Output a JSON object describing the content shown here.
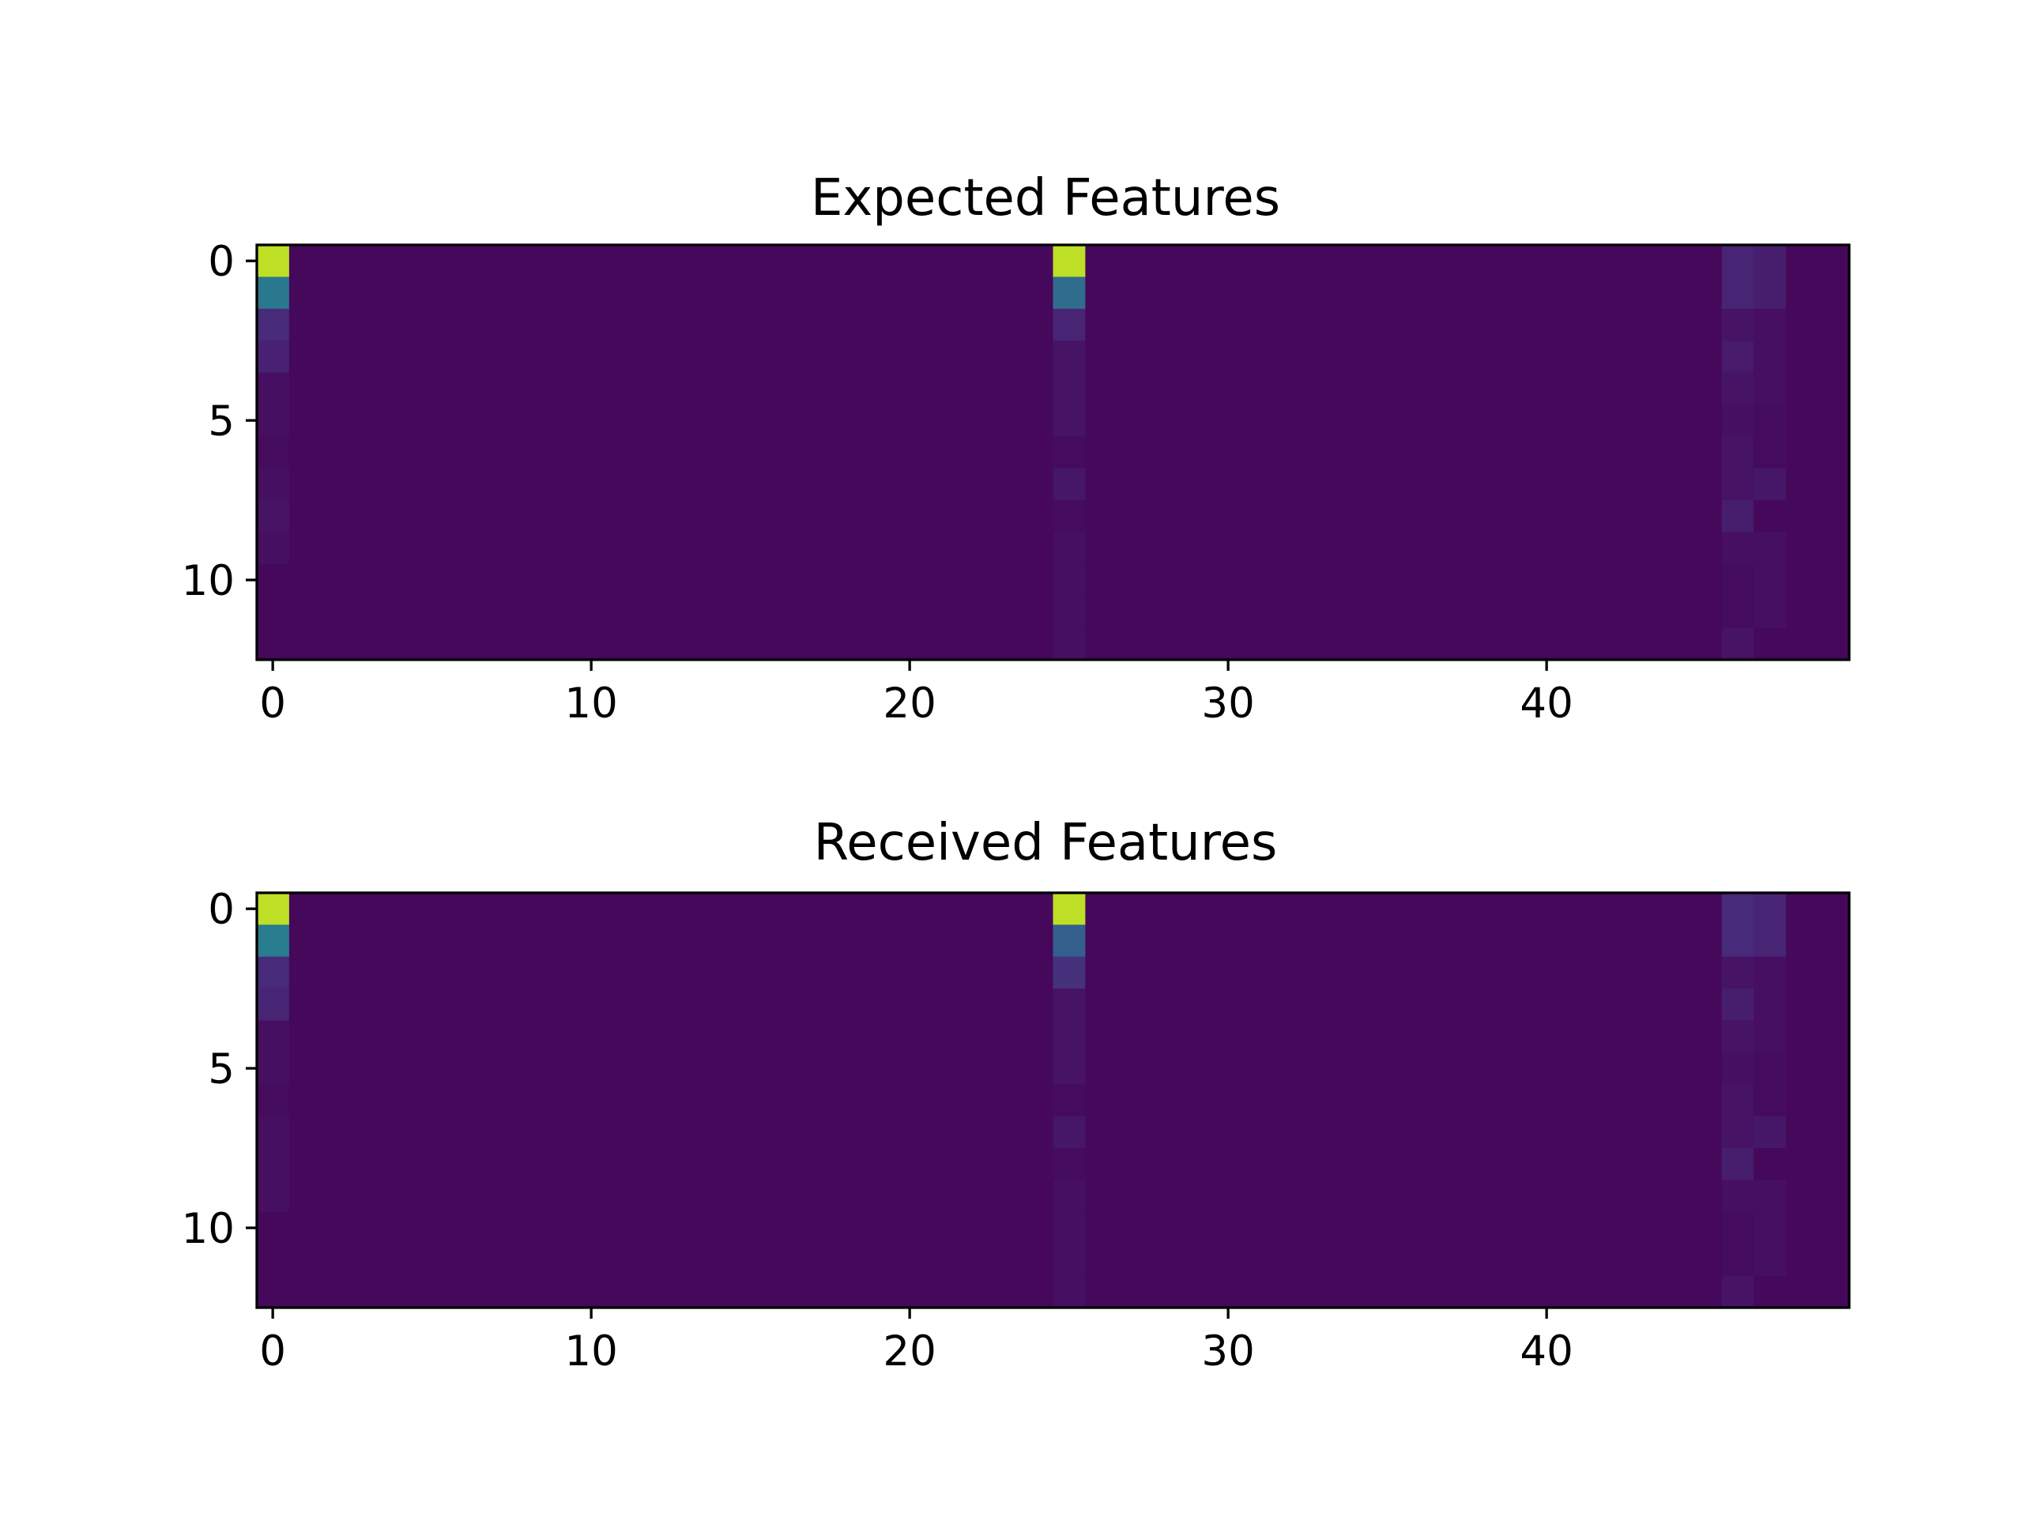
{
  "chart_data": [
    {
      "type": "heatmap",
      "title": "Expected Features",
      "colormap": "viridis",
      "n_rows": 13,
      "n_cols": 50,
      "xlim": [
        -0.5,
        49.5
      ],
      "ylim": [
        12.5,
        -0.5
      ],
      "xticks": [
        0,
        10,
        20,
        30,
        40
      ],
      "yticks": [
        0,
        5,
        10
      ],
      "xtick_labels": [
        "0",
        "10",
        "20",
        "30",
        "40"
      ],
      "ytick_labels": [
        "0",
        "5",
        "10"
      ],
      "grid": false,
      "background_value": 0.02,
      "cells": [
        [
          0,
          0,
          0.9
        ],
        [
          1,
          0,
          0.4
        ],
        [
          2,
          0,
          0.12
        ],
        [
          3,
          0,
          0.09
        ],
        [
          4,
          0,
          0.04
        ],
        [
          5,
          0,
          0.04
        ],
        [
          6,
          0,
          0.03
        ],
        [
          7,
          0,
          0.04
        ],
        [
          8,
          0,
          0.05
        ],
        [
          9,
          0,
          0.04
        ],
        [
          0,
          25,
          0.9
        ],
        [
          1,
          25,
          0.35
        ],
        [
          2,
          25,
          0.1
        ],
        [
          3,
          25,
          0.05
        ],
        [
          4,
          25,
          0.05
        ],
        [
          5,
          25,
          0.05
        ],
        [
          6,
          25,
          0.03
        ],
        [
          7,
          25,
          0.06
        ],
        [
          8,
          25,
          0.03
        ],
        [
          9,
          25,
          0.04
        ],
        [
          10,
          25,
          0.04
        ],
        [
          11,
          25,
          0.04
        ],
        [
          12,
          25,
          0.04
        ],
        [
          0,
          46,
          0.1
        ],
        [
          1,
          46,
          0.1
        ],
        [
          2,
          46,
          0.05
        ],
        [
          3,
          46,
          0.07
        ],
        [
          4,
          46,
          0.05
        ],
        [
          5,
          46,
          0.04
        ],
        [
          6,
          46,
          0.05
        ],
        [
          7,
          46,
          0.05
        ],
        [
          8,
          46,
          0.08
        ],
        [
          9,
          46,
          0.04
        ],
        [
          10,
          46,
          0.03
        ],
        [
          11,
          46,
          0.03
        ],
        [
          12,
          46,
          0.05
        ],
        [
          0,
          47,
          0.08
        ],
        [
          1,
          47,
          0.08
        ],
        [
          2,
          47,
          0.04
        ],
        [
          3,
          47,
          0.04
        ],
        [
          4,
          47,
          0.04
        ],
        [
          5,
          47,
          0.03
        ],
        [
          6,
          47,
          0.03
        ],
        [
          7,
          47,
          0.06
        ],
        [
          8,
          47,
          0.02
        ],
        [
          9,
          47,
          0.04
        ],
        [
          10,
          47,
          0.04
        ],
        [
          11,
          47,
          0.04
        ]
      ]
    },
    {
      "type": "heatmap",
      "title": "Received Features",
      "colormap": "viridis",
      "n_rows": 13,
      "n_cols": 50,
      "xlim": [
        -0.5,
        49.5
      ],
      "ylim": [
        12.5,
        -0.5
      ],
      "xticks": [
        0,
        10,
        20,
        30,
        40
      ],
      "yticks": [
        0,
        5,
        10
      ],
      "xtick_labels": [
        "0",
        "10",
        "20",
        "30",
        "40"
      ],
      "ytick_labels": [
        "0",
        "5",
        "10"
      ],
      "grid": false,
      "background_value": 0.02,
      "cells": [
        [
          0,
          0,
          0.9
        ],
        [
          1,
          0,
          0.42
        ],
        [
          2,
          0,
          0.12
        ],
        [
          3,
          0,
          0.1
        ],
        [
          4,
          0,
          0.04
        ],
        [
          5,
          0,
          0.04
        ],
        [
          6,
          0,
          0.03
        ],
        [
          7,
          0,
          0.04
        ],
        [
          8,
          0,
          0.04
        ],
        [
          9,
          0,
          0.04
        ],
        [
          0,
          25,
          0.9
        ],
        [
          1,
          25,
          0.3
        ],
        [
          2,
          25,
          0.14
        ],
        [
          3,
          25,
          0.05
        ],
        [
          4,
          25,
          0.05
        ],
        [
          5,
          25,
          0.05
        ],
        [
          6,
          25,
          0.03
        ],
        [
          7,
          25,
          0.06
        ],
        [
          8,
          25,
          0.03
        ],
        [
          9,
          25,
          0.04
        ],
        [
          10,
          25,
          0.04
        ],
        [
          11,
          25,
          0.04
        ],
        [
          12,
          25,
          0.04
        ],
        [
          0,
          46,
          0.12
        ],
        [
          1,
          46,
          0.12
        ],
        [
          2,
          46,
          0.05
        ],
        [
          3,
          46,
          0.08
        ],
        [
          4,
          46,
          0.05
        ],
        [
          5,
          46,
          0.04
        ],
        [
          6,
          46,
          0.05
        ],
        [
          7,
          46,
          0.05
        ],
        [
          8,
          46,
          0.08
        ],
        [
          9,
          46,
          0.04
        ],
        [
          10,
          46,
          0.03
        ],
        [
          11,
          46,
          0.03
        ],
        [
          12,
          46,
          0.05
        ],
        [
          0,
          47,
          0.1
        ],
        [
          1,
          47,
          0.1
        ],
        [
          2,
          47,
          0.04
        ],
        [
          3,
          47,
          0.04
        ],
        [
          4,
          47,
          0.04
        ],
        [
          5,
          47,
          0.03
        ],
        [
          6,
          47,
          0.03
        ],
        [
          7,
          47,
          0.06
        ],
        [
          8,
          47,
          0.02
        ],
        [
          9,
          47,
          0.04
        ],
        [
          10,
          47,
          0.04
        ],
        [
          11,
          47,
          0.04
        ]
      ]
    }
  ]
}
